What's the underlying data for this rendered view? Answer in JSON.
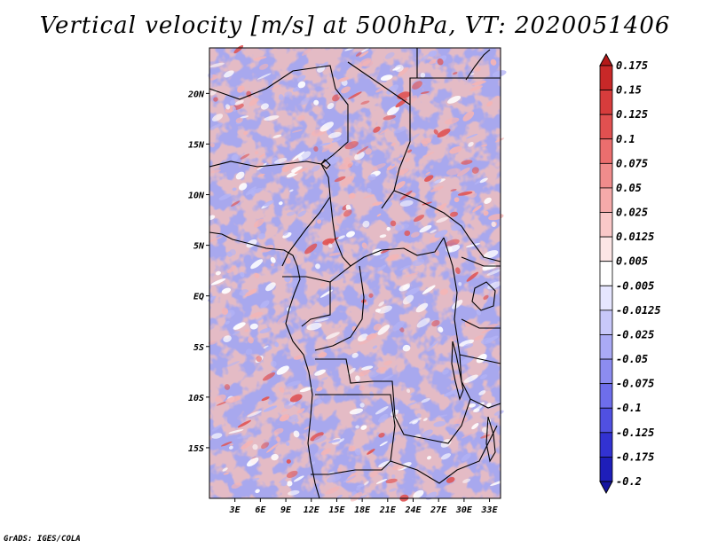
{
  "title": "Vertical velocity [m/s] at 500hPa, VT: 2020051406",
  "footer": "GrADS: IGES/COLA",
  "map": {
    "region": "Central Africa",
    "lat_labels": [
      "20N",
      "15N",
      "10N",
      "5N",
      "EQ",
      "5S",
      "10S",
      "15S"
    ],
    "lat_values": [
      20,
      15,
      10,
      5,
      0,
      -5,
      -10,
      -15
    ],
    "lon_labels": [
      "3E",
      "6E",
      "9E",
      "12E",
      "15E",
      "18E",
      "21E",
      "24E",
      "27E",
      "30E",
      "33E"
    ],
    "lon_values": [
      3,
      6,
      9,
      12,
      15,
      18,
      21,
      24,
      27,
      30,
      33
    ],
    "lat_range": [
      -20,
      24.5
    ],
    "lon_range": [
      0,
      34.3
    ]
  },
  "colorbar": {
    "labels": [
      "0.175",
      "0.15",
      "0.125",
      "0.1",
      "0.075",
      "0.05",
      "0.025",
      "0.0125",
      "0.005",
      "-0.005",
      "-0.0125",
      "-0.025",
      "-0.05",
      "-0.075",
      "-0.1",
      "-0.125",
      "-0.175",
      "-0.2"
    ],
    "colors": [
      "#b41919",
      "#c82828",
      "#d73c3c",
      "#e15050",
      "#eb6e6e",
      "#f08c8c",
      "#f5aaaa",
      "#fac8c8",
      "#fde6e6",
      "#ffffff",
      "#e6e6ff",
      "#c8c8fa",
      "#aaaaf5",
      "#8c8cf0",
      "#6e6eeb",
      "#5050e1",
      "#3232d2",
      "#1e1eb9",
      "#1414a0"
    ]
  },
  "colors": {
    "positive_strong": "#e05555",
    "positive_light": "#f5b4b4",
    "negative_strong": "#6464e6",
    "negative_light": "#b4b4f5"
  }
}
